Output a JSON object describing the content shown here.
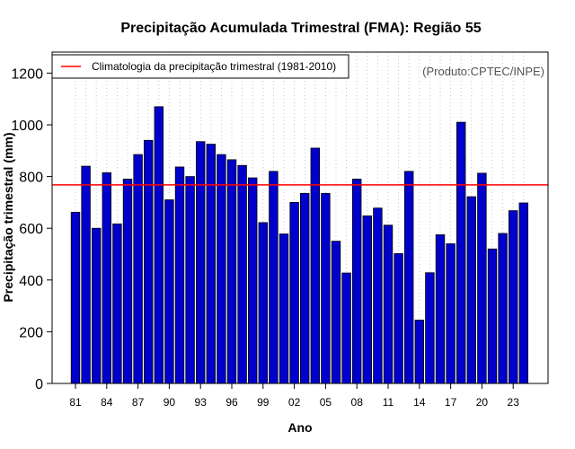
{
  "chart_data": {
    "type": "bar",
    "title": "Precipitação Acumulada Trimestral (FMA): Região 55",
    "xlabel": "Ano",
    "ylabel": "Precipitação trimestral (mm)",
    "ylim": [
      0,
      1280
    ],
    "yticks": [
      0,
      200,
      400,
      600,
      800,
      1000,
      1200
    ],
    "xtick_labels": [
      "81",
      "84",
      "87",
      "90",
      "93",
      "96",
      "99",
      "02",
      "05",
      "08",
      "11",
      "14",
      "17",
      "20",
      "23"
    ],
    "categories": [
      "1981",
      "1982",
      "1983",
      "1984",
      "1985",
      "1986",
      "1987",
      "1988",
      "1989",
      "1990",
      "1991",
      "1992",
      "1993",
      "1994",
      "1995",
      "1996",
      "1997",
      "1998",
      "1999",
      "2000",
      "2001",
      "2002",
      "2003",
      "2004",
      "2005",
      "2006",
      "2007",
      "2008",
      "2009",
      "2010",
      "2011",
      "2012",
      "2013",
      "2014",
      "2015",
      "2016",
      "2017",
      "2018",
      "2019",
      "2020",
      "2021",
      "2022",
      "2023",
      "2024"
    ],
    "values": [
      662,
      840,
      600,
      815,
      617,
      790,
      885,
      940,
      1070,
      710,
      837,
      800,
      935,
      925,
      885,
      865,
      843,
      795,
      622,
      820,
      578,
      700,
      735,
      910,
      735,
      550,
      427,
      790,
      648,
      678,
      612,
      502,
      820,
      245,
      428,
      575,
      540,
      1010,
      722,
      813,
      520,
      580,
      668,
      698
    ],
    "climatology": 768,
    "legend": {
      "label": "Climatologia da precipitação trimestral (1981-2010)",
      "position": "top-left"
    },
    "annotation": "(Produto:CPTEC/INPE)",
    "grid": "vertical dotted",
    "colors": {
      "bar": "#0000cd",
      "bar_edge": "#000000",
      "climatology": "#ff0000",
      "grid": "#c8c8c8",
      "annotation": "#555555"
    }
  }
}
